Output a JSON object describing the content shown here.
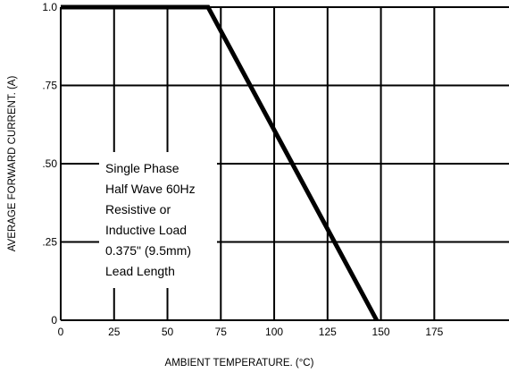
{
  "chart_data": {
    "type": "line",
    "title": "",
    "xlabel": "AMBIENT TEMPERATURE. (°C)",
    "ylabel": "AVERAGE FORWARD CURRENT. (A)",
    "xlim": [
      0,
      210
    ],
    "ylim": [
      0,
      1.0
    ],
    "x_ticks": [
      0,
      25,
      50,
      75,
      100,
      125,
      150,
      175
    ],
    "x_tick_labels": [
      "0",
      "25",
      "50",
      "75",
      "100",
      "125",
      "150",
      "175"
    ],
    "y_ticks": [
      0,
      0.25,
      0.5,
      0.75,
      1.0
    ],
    "y_tick_labels": [
      "0",
      ".25",
      ".50",
      ".75",
      "1.0"
    ],
    "grid": true,
    "series": [
      {
        "x": [
          0,
          69,
          148
        ],
        "y": [
          1.0,
          1.0,
          0.0
        ],
        "color": "#000000"
      }
    ],
    "annotation": {
      "lines": [
        "Single Phase",
        "Half Wave 60Hz",
        "Resistive or",
        "Inductive Load",
        "0.375\" (9.5mm)",
        "Lead Length"
      ]
    }
  }
}
